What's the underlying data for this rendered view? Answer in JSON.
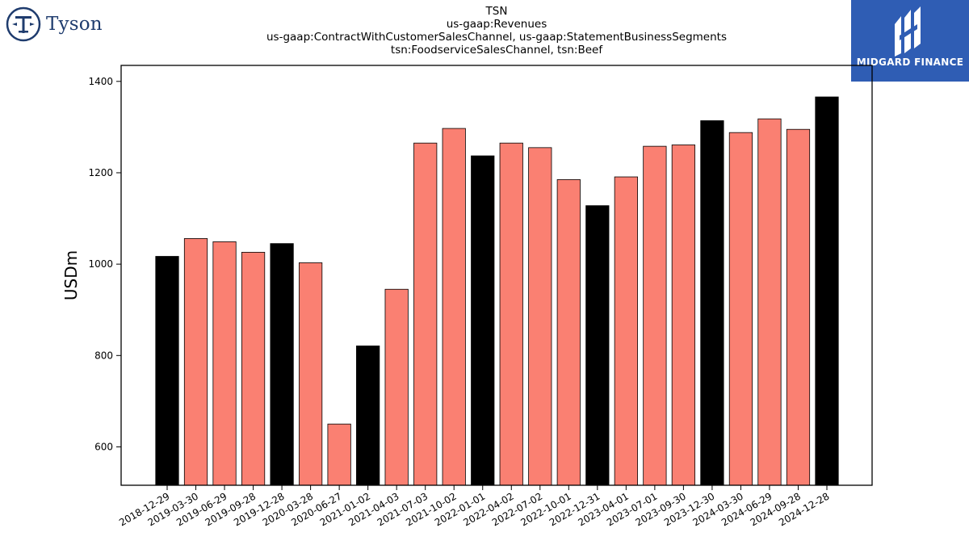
{
  "logos": {
    "left_brand": "Tyson",
    "right_brand": "MIDGARD FINANCE"
  },
  "colors": {
    "highlight": "#000000",
    "normal": "#fa8072",
    "logo_blue": "#2f5db4",
    "tyson_navy": "#1f3c6e"
  },
  "chart_data": {
    "type": "bar",
    "title_lines": [
      "TSN",
      "us-gaap:Revenues",
      "us-gaap:ContractWithCustomerSalesChannel, us-gaap:StatementBusinessSegments",
      "tsn:FoodserviceSalesChannel, tsn:Beef"
    ],
    "xlabel": "",
    "ylabel": "USDm",
    "ylim": [
      516,
      1435
    ],
    "yticks": [
      600,
      800,
      1000,
      1200,
      1400
    ],
    "grid": false,
    "categories": [
      "2018-12-29",
      "2019-03-30",
      "2019-06-29",
      "2019-09-28",
      "2019-12-28",
      "2020-03-28",
      "2020-06-27",
      "2021-01-02",
      "2021-04-03",
      "2021-07-03",
      "2021-10-02",
      "2022-01-01",
      "2022-04-02",
      "2022-07-02",
      "2022-10-01",
      "2022-12-31",
      "2023-04-01",
      "2023-07-01",
      "2023-09-30",
      "2023-12-30",
      "2024-03-30",
      "2024-06-29",
      "2024-09-28",
      "2024-12-28"
    ],
    "values": [
      1017,
      1056,
      1049,
      1026,
      1045,
      1003,
      650,
      821,
      945,
      1265,
      1297,
      1237,
      1265,
      1255,
      1185,
      1128,
      1191,
      1258,
      1261,
      1314,
      1288,
      1318,
      1295,
      1366
    ],
    "highlighted": [
      true,
      false,
      false,
      false,
      true,
      false,
      false,
      true,
      false,
      false,
      false,
      true,
      false,
      false,
      false,
      true,
      false,
      false,
      false,
      true,
      false,
      false,
      false,
      true
    ]
  }
}
